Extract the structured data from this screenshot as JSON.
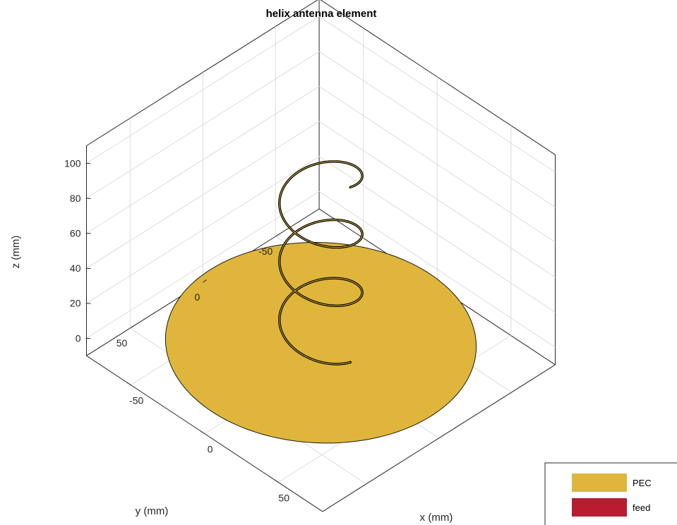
{
  "chart_data": {
    "type": "3d-geometry",
    "title": "helix antenna element",
    "xlabel": "x (mm)",
    "ylabel": "y (mm)",
    "zlabel": "z (mm)",
    "x_ticks": [
      {
        "value": -50,
        "label": "-50"
      },
      {
        "value": 0,
        "label": "0"
      },
      {
        "value": 50,
        "label": "50"
      }
    ],
    "y_ticks": [
      {
        "value": -50,
        "label": "-50"
      },
      {
        "value": 0,
        "label": "0"
      },
      {
        "value": 50,
        "label": "50"
      }
    ],
    "z_ticks": [
      {
        "value": 0,
        "label": "0"
      },
      {
        "value": 20,
        "label": "20"
      },
      {
        "value": 40,
        "label": "40"
      },
      {
        "value": 60,
        "label": "60"
      },
      {
        "value": 80,
        "label": "80"
      },
      {
        "value": 100,
        "label": "100"
      }
    ],
    "xlim": [
      -80,
      80
    ],
    "ylim": [
      -80,
      80
    ],
    "zlim": [
      -10,
      110
    ],
    "grid": true,
    "legend": {
      "placement": "bottom-right",
      "entries": [
        {
          "name": "PEC",
          "color": "#dfb63b"
        },
        {
          "name": "feed",
          "color": "#b71c31"
        }
      ]
    },
    "ground_plane": {
      "shape": "disc",
      "radius": 75,
      "z": 0,
      "material": "PEC",
      "color": "#dfb63b"
    },
    "helix": {
      "radius": 20,
      "turns": 3,
      "z_start": 0,
      "z_end": 100,
      "start_angle_deg": 0,
      "wire_color": "#000000",
      "highlight_color": "#dfb63b"
    }
  }
}
